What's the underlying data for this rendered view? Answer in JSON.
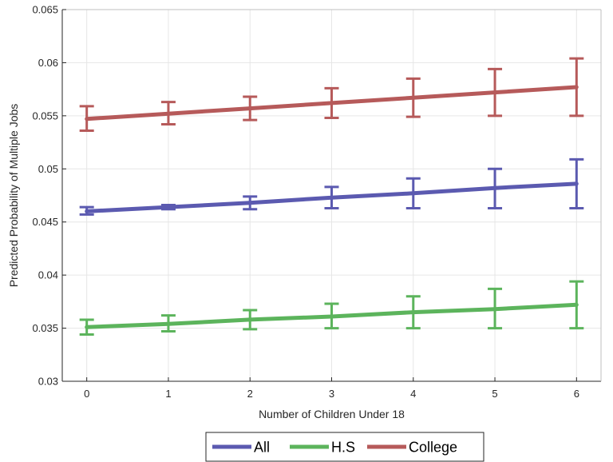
{
  "chart_data": {
    "type": "line",
    "title": "",
    "xlabel": "Number of Children Under 18",
    "ylabel": "Predicted Probability of Multiple Jobs",
    "x": [
      0,
      1,
      2,
      3,
      4,
      5,
      6
    ],
    "xticks": [
      "0",
      "1",
      "2",
      "3",
      "4",
      "5",
      "6"
    ],
    "xlim": [
      -0.3,
      6.3
    ],
    "ylim": [
      0.03,
      0.065
    ],
    "yticks": [
      "0.03",
      "0.035",
      "0.04",
      "0.045",
      "0.05",
      "0.055",
      "0.06",
      "0.065"
    ],
    "grid": true,
    "legend_position": "bottom-outside",
    "series": [
      {
        "name": "All",
        "color": "#5b5ab0",
        "values": [
          0.046,
          0.0464,
          0.0468,
          0.0473,
          0.0477,
          0.0482,
          0.0486
        ],
        "lower": [
          0.0457,
          0.0462,
          0.0462,
          0.0463,
          0.0463,
          0.0463,
          0.0463
        ],
        "upper": [
          0.0464,
          0.0466,
          0.0474,
          0.0483,
          0.0491,
          0.05,
          0.0509
        ]
      },
      {
        "name": "H.S",
        "color": "#5cb45c",
        "values": [
          0.0351,
          0.0354,
          0.0358,
          0.0361,
          0.0365,
          0.0368,
          0.0372
        ],
        "lower": [
          0.0344,
          0.0347,
          0.0349,
          0.035,
          0.035,
          0.035,
          0.035
        ],
        "upper": [
          0.0358,
          0.0362,
          0.0367,
          0.0373,
          0.038,
          0.0387,
          0.0394
        ]
      },
      {
        "name": "College",
        "color": "#b65a5a",
        "values": [
          0.0547,
          0.0552,
          0.0557,
          0.0562,
          0.0567,
          0.0572,
          0.0577
        ],
        "lower": [
          0.0536,
          0.0542,
          0.0546,
          0.0548,
          0.0549,
          0.055,
          0.055
        ],
        "upper": [
          0.0559,
          0.0563,
          0.0568,
          0.0576,
          0.0585,
          0.0594,
          0.0604
        ]
      }
    ]
  }
}
